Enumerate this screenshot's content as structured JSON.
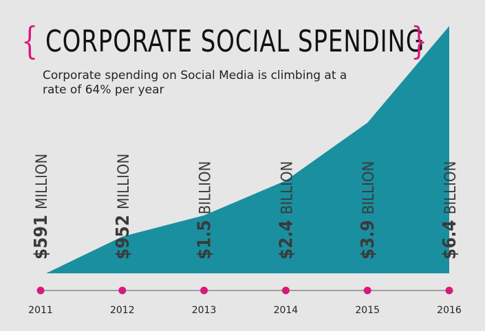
{
  "title": "CORPORATE SOCIAL SPENDING",
  "brace_left": "{",
  "brace_right": "}",
  "subtitle": "Corporate spending on Social Media is climbing at a rate of 64% per year",
  "colors": {
    "area": "#1a8fa0",
    "accent": "#d8197a",
    "text": "#222222",
    "background": "#e6e6e6"
  },
  "chart_data": {
    "type": "area",
    "title": "CORPORATE SOCIAL SPENDING",
    "subtitle": "Corporate spending on Social Media is climbing at a rate of 64% per year",
    "categories": [
      "2011",
      "2012",
      "2013",
      "2014",
      "2015",
      "2016"
    ],
    "values_usd_millions": [
      591,
      952,
      1500,
      2400,
      3900,
      6400
    ],
    "labels": [
      {
        "amount": "$591",
        "unit": "MILLION"
      },
      {
        "amount": "$952",
        "unit": "MILLION"
      },
      {
        "amount": "$1.5",
        "unit": "BILLION"
      },
      {
        "amount": "$2.4",
        "unit": "BILLION"
      },
      {
        "amount": "$3.9",
        "unit": "BILLION"
      },
      {
        "amount": "$6.4",
        "unit": "BILLION"
      }
    ],
    "grid": false,
    "legend": "none"
  }
}
